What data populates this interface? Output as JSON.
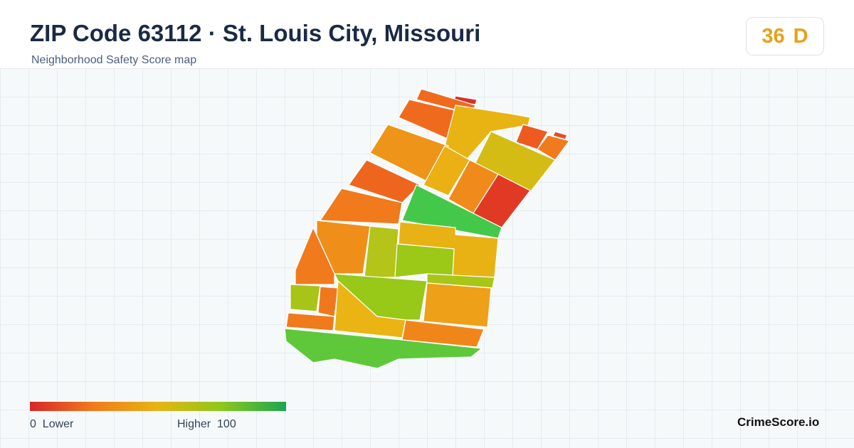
{
  "header": {
    "title": "ZIP Code 63112 · St. Louis City, Missouri",
    "subtitle": "Neighborhood Safety Score map"
  },
  "score": {
    "value": 36,
    "grade": "D"
  },
  "legend": {
    "min": 0,
    "min_label": "Lower",
    "max_label": "Higher",
    "max": 100
  },
  "brand": "CrimeScore.io"
}
